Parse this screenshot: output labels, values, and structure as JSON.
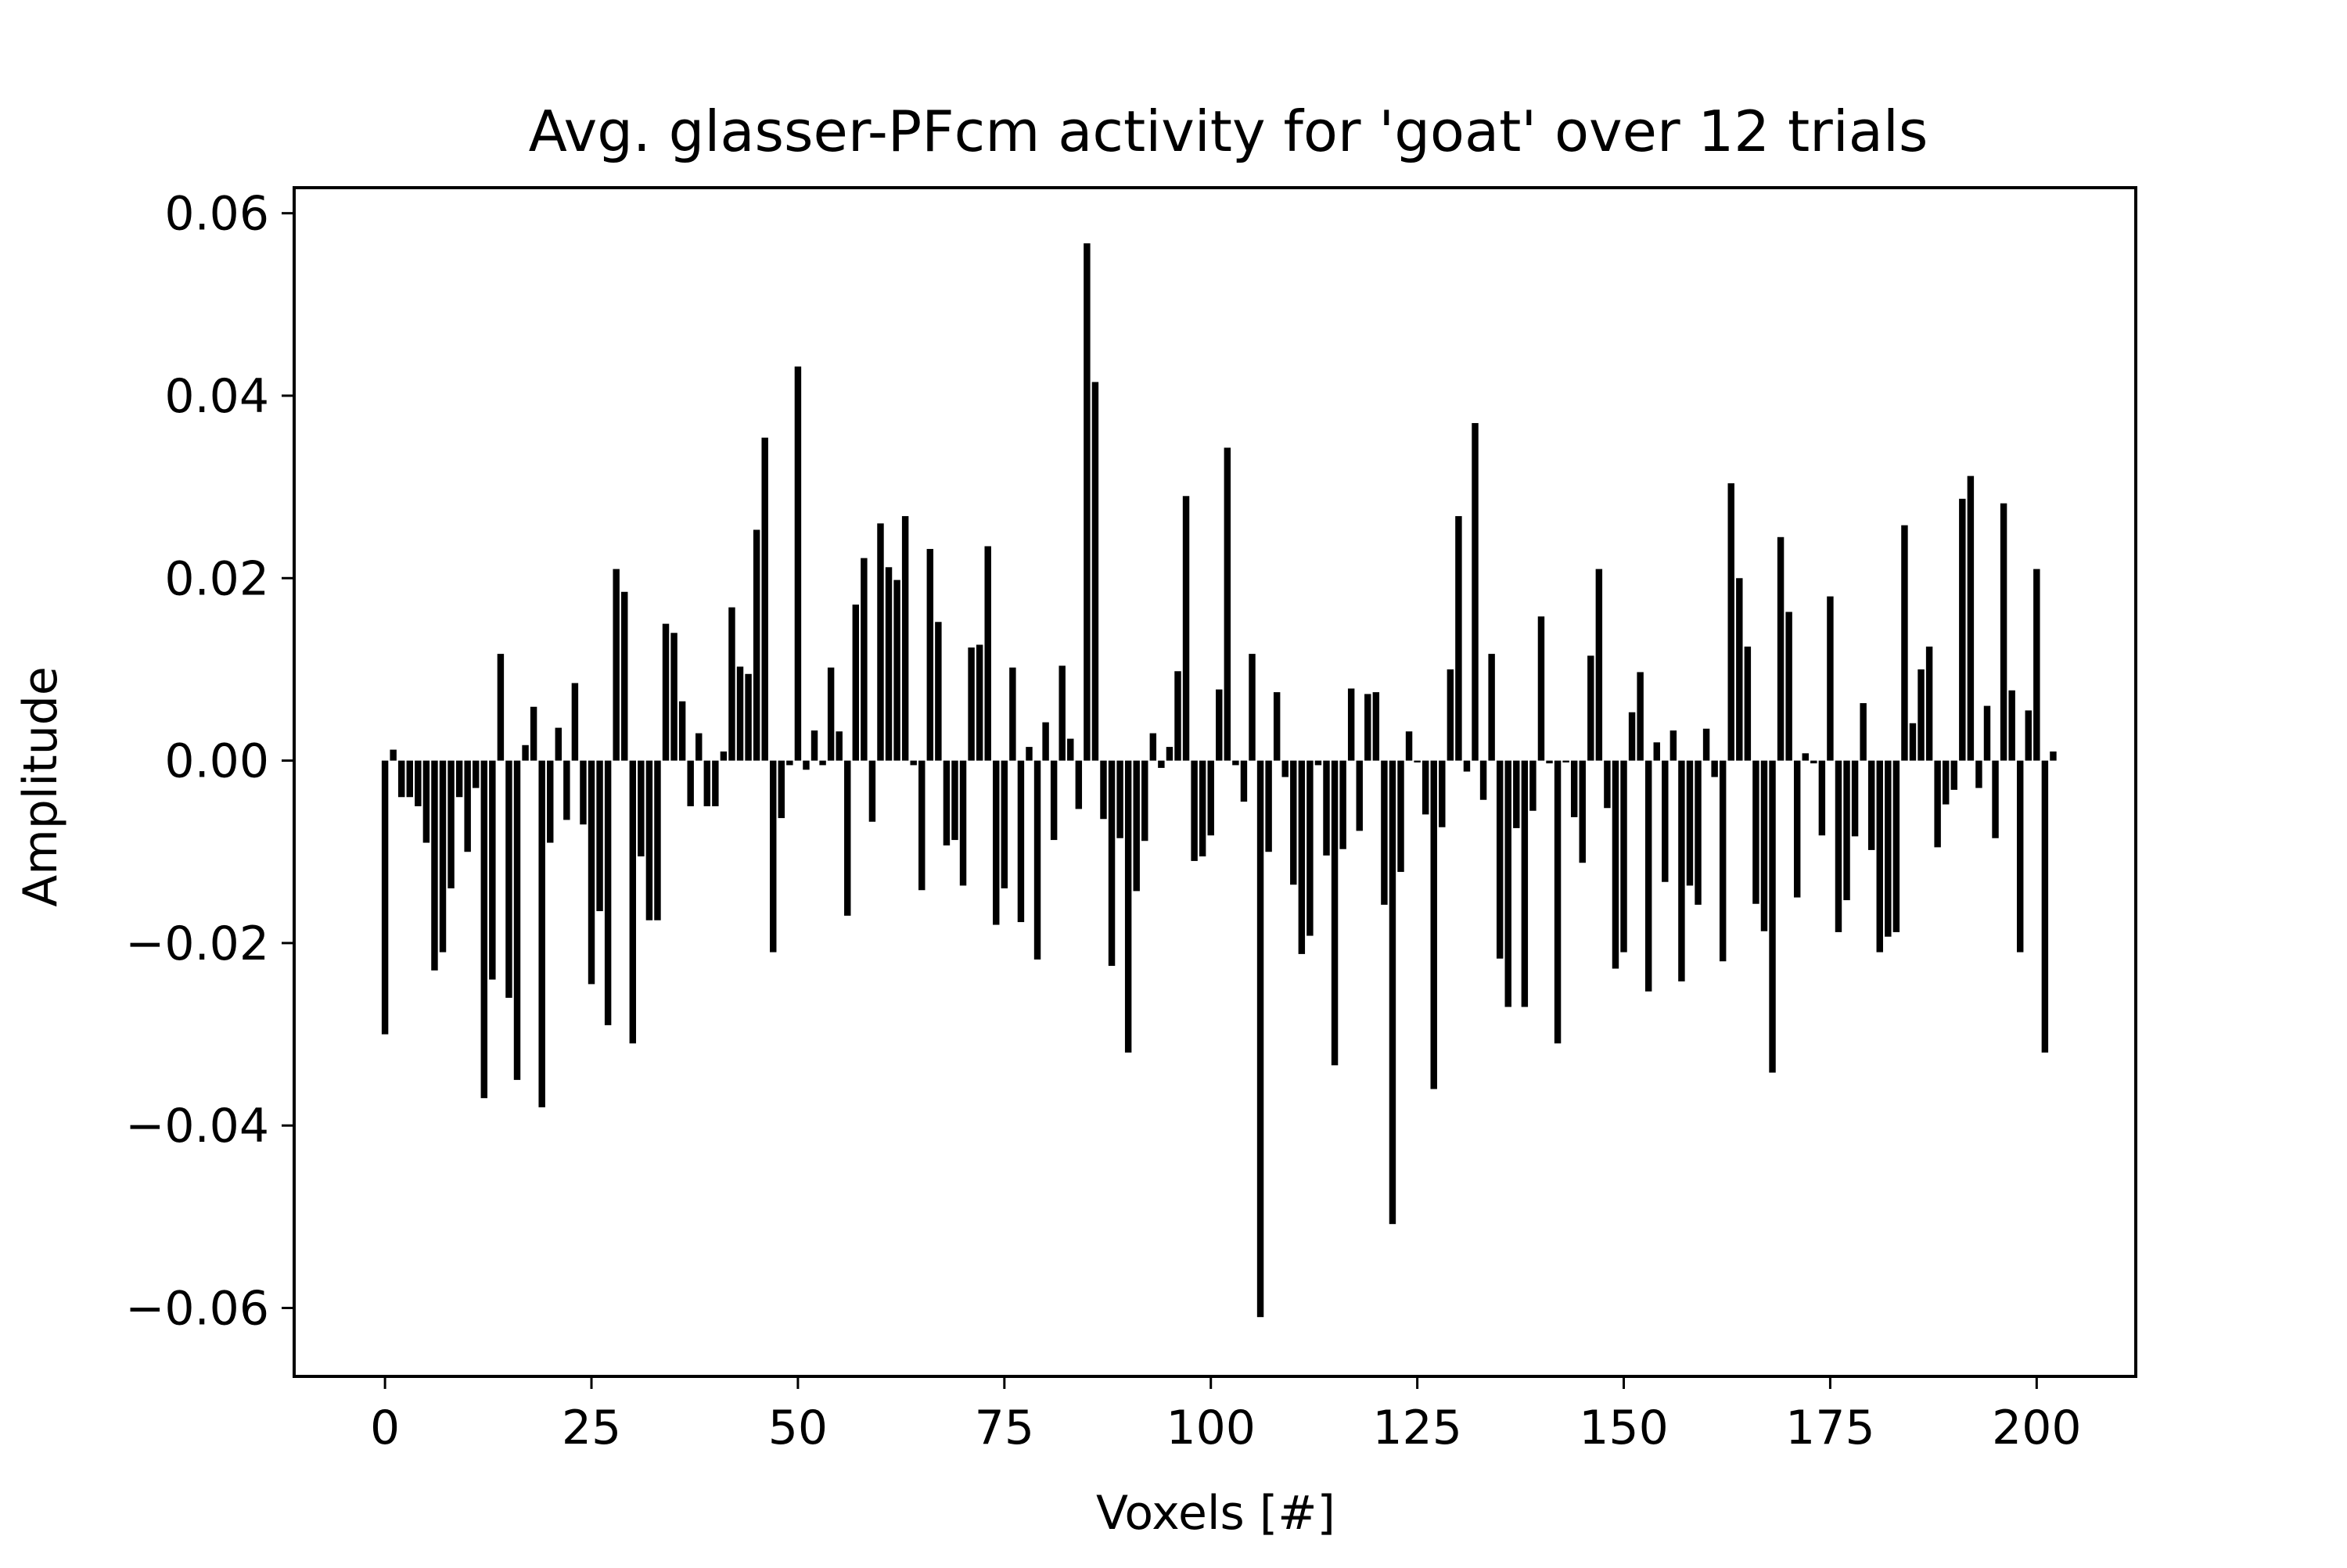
{
  "chart_data": {
    "type": "bar",
    "title": "Avg. glasser-PFcm activity for 'goat' over 12 trials",
    "xlabel": "Voxels [#]",
    "ylabel": "Amplitude",
    "xlim": [
      -11,
      212
    ],
    "ylim": [
      -0.0675,
      0.0628
    ],
    "xticks": [
      0,
      25,
      50,
      75,
      100,
      125,
      150,
      175,
      200
    ],
    "xtick_labels": [
      "0",
      "25",
      "50",
      "75",
      "100",
      "125",
      "150",
      "175",
      "200"
    ],
    "yticks": [
      0.06,
      0.04,
      0.02,
      0.0,
      -0.02,
      -0.04,
      -0.06
    ],
    "ytick_labels": [
      "0.06",
      "0.04",
      "0.02",
      "0.00",
      "−0.02",
      "−0.04",
      "−0.06"
    ],
    "grid": false,
    "bar_color": "#000000",
    "x": [
      0,
      1,
      2,
      3,
      4,
      5,
      6,
      7,
      8,
      9,
      10,
      11,
      12,
      13,
      14,
      15,
      16,
      17,
      18,
      19,
      20,
      21,
      22,
      23,
      24,
      25,
      26,
      27,
      28,
      29,
      30,
      31,
      32,
      33,
      34,
      35,
      36,
      37,
      38,
      39,
      40,
      41,
      42,
      43,
      44,
      45,
      46,
      47,
      48,
      49,
      50,
      51,
      52,
      53,
      54,
      55,
      56,
      57,
      58,
      59,
      60,
      61,
      62,
      63,
      64,
      65,
      66,
      67,
      68,
      69,
      70,
      71,
      72,
      73,
      74,
      75,
      76,
      77,
      78,
      79,
      80,
      81,
      82,
      83,
      84,
      85,
      86,
      87,
      88,
      89,
      90,
      91,
      92,
      93,
      94,
      95,
      96,
      97,
      98,
      99,
      100,
      101,
      102,
      103,
      104,
      105,
      106,
      107,
      108,
      109,
      110,
      111,
      112,
      113,
      114,
      115,
      116,
      117,
      118,
      119,
      120,
      121,
      122,
      123,
      124,
      125,
      126,
      127,
      128,
      129,
      130,
      131,
      132,
      133,
      134,
      135,
      136,
      137,
      138,
      139,
      140,
      141,
      142,
      143,
      144,
      145,
      146,
      147,
      148,
      149,
      150,
      151,
      152,
      153,
      154,
      155,
      156,
      157,
      158,
      159,
      160,
      161,
      162,
      163,
      164,
      165,
      166,
      167,
      168,
      169,
      170,
      171,
      172,
      173,
      174,
      175,
      176,
      177,
      178,
      179,
      180,
      181,
      182,
      183,
      184,
      185,
      186,
      187,
      188,
      189,
      190,
      191,
      192,
      193,
      194,
      195,
      196,
      197,
      198,
      199,
      200,
      201,
      202
    ],
    "values": [
      -0.03,
      0.0012,
      -0.004,
      -0.004,
      -0.005,
      -0.009,
      -0.023,
      -0.021,
      -0.014,
      -0.004,
      -0.01,
      -0.003,
      -0.037,
      -0.024,
      0.0117,
      -0.026,
      -0.035,
      0.0017,
      0.0059,
      -0.038,
      -0.009,
      0.0036,
      -0.0065,
      0.0085,
      -0.007,
      -0.0245,
      -0.0165,
      -0.029,
      0.021,
      0.0185,
      -0.031,
      -0.0105,
      -0.0175,
      -0.0175,
      0.015,
      0.014,
      0.0065,
      -0.005,
      0.003,
      -0.005,
      -0.005,
      0.001,
      0.0168,
      0.0103,
      0.0095,
      0.0253,
      0.0354,
      -0.021,
      -0.0063,
      -0.0005,
      0.0432,
      -0.001,
      0.0033,
      -0.0005,
      0.0102,
      0.0032,
      -0.017,
      0.0171,
      0.0222,
      -0.0067,
      0.026,
      0.0212,
      0.0198,
      0.0268,
      -0.0005,
      -0.0142,
      0.0232,
      0.0152,
      -0.0093,
      -0.0087,
      -0.0137,
      0.0124,
      0.0127,
      0.0235,
      -0.018,
      -0.014,
      0.0102,
      -0.0177,
      0.0015,
      -0.0218,
      0.0042,
      -0.0087,
      0.0104,
      0.0024,
      -0.0053,
      0.0567,
      0.0415,
      -0.0064,
      -0.0225,
      -0.0085,
      -0.032,
      -0.0143,
      -0.0088,
      0.003,
      -0.0008,
      0.0015,
      0.0098,
      0.029,
      -0.011,
      -0.0105,
      -0.0082,
      0.0078,
      0.0343,
      -0.0005,
      -0.0045,
      0.0117,
      -0.061,
      -0.01,
      0.0075,
      -0.0018,
      -0.0136,
      -0.0212,
      -0.0192,
      -0.0005,
      -0.0104,
      -0.0334,
      -0.0097,
      0.0079,
      -0.0077,
      0.0073,
      0.0075,
      -0.0158,
      -0.0508,
      -0.0122,
      0.0032,
      -0.0002,
      -0.0059,
      -0.036,
      -0.0073,
      0.01,
      0.0268,
      -0.0012,
      0.037,
      -0.0043,
      0.0117,
      -0.0217,
      -0.027,
      -0.0074,
      -0.027,
      -0.0055,
      0.0158,
      -0.0003,
      -0.031,
      -0.0002,
      -0.0062,
      -0.0112,
      0.0115,
      0.021,
      -0.0052,
      -0.0228,
      -0.021,
      0.0053,
      0.0097,
      -0.0253,
      0.002,
      -0.0133,
      0.0033,
      -0.0242,
      -0.0137,
      -0.0158,
      0.0035,
      -0.0018,
      -0.022,
      0.0304,
      0.02,
      0.0125,
      -0.0157,
      -0.0187,
      -0.0342,
      0.0245,
      0.0163,
      -0.015,
      0.0008,
      -0.0003,
      -0.0082,
      0.018,
      -0.0188,
      -0.0153,
      -0.0083,
      0.0063,
      -0.0098,
      -0.021,
      -0.0193,
      -0.0188,
      0.0258,
      0.0041,
      0.01,
      0.0125,
      -0.0095,
      -0.0048,
      -0.0032,
      0.0287,
      0.0312,
      -0.003,
      0.006,
      -0.0085,
      0.0282,
      0.0077,
      -0.021,
      0.0055,
      0.021,
      -0.032,
      0.001
    ]
  }
}
